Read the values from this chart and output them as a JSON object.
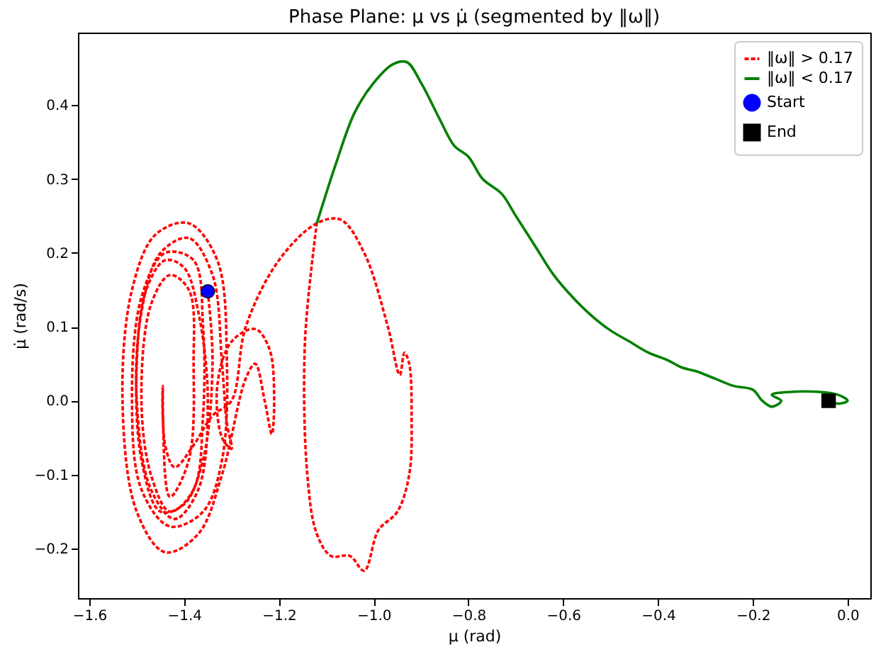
{
  "chart_data": {
    "type": "line",
    "title": "Phase Plane: μ vs μ̇ (segmented by ‖ω‖)",
    "xlabel": "μ (rad)",
    "ylabel": "μ̇ (rad/s)",
    "xlim": [
      -1.624,
      0.048
    ],
    "ylim": [
      -0.267,
      0.498
    ],
    "xticks": [
      -1.6,
      -1.4,
      -1.2,
      {
        "value": -1,
        "label": "−1.0"
      },
      -0.8,
      -0.6,
      -0.4,
      -0.2,
      {
        "value": 0,
        "label": "0.0"
      }
    ],
    "yticks": [
      -0.2,
      -0.1,
      {
        "value": 0,
        "label": "0.0"
      },
      0.1,
      0.2,
      0.3,
      0.4
    ],
    "legend": "top right",
    "series": [
      {
        "name": "‖ω‖ > 0.17",
        "line_style": "dashed",
        "color": "#ff0000",
        "x": [
          -1.35,
          -1.34,
          -1.36,
          -1.4,
          -1.45,
          -1.49,
          -1.5,
          -1.48,
          -1.44,
          -1.4,
          -1.37,
          -1.35,
          -1.37,
          -1.42,
          -1.47,
          -1.5,
          -1.49,
          -1.45,
          -1.39,
          -1.34,
          -1.32,
          -1.31,
          -1.3,
          -1.32,
          -1.33,
          -1.3,
          -1.25,
          -1.22,
          -1.21,
          -1.215,
          -1.23,
          -1.25,
          -1.27,
          -1.32,
          -1.37,
          -1.44,
          -1.5,
          -1.53,
          -1.51,
          -1.46,
          -1.39,
          -1.33,
          -1.31,
          -1.32,
          -1.36,
          -1.43,
          -1.49,
          -1.51,
          -1.49,
          -1.44,
          -1.38,
          -1.36,
          -1.36,
          -1.38,
          -1.43,
          -1.47,
          -1.49,
          -1.47,
          -1.43,
          -1.39,
          -1.38,
          -1.39,
          -1.43,
          -1.445,
          -1.445,
          -1.44,
          -1.42,
          -1.38,
          -1.34,
          -1.3,
          -1.27,
          -1.2,
          -1.12,
          -1.07,
          -1.02,
          -0.97,
          -0.945,
          -0.935,
          -0.925,
          -0.92,
          -0.925,
          -0.95,
          -0.99,
          -1.02,
          -1.05,
          -1.09,
          -1.12,
          -1.14,
          -1.145,
          -1.12
        ],
        "values": [
          0.148,
          0.05,
          -0.08,
          -0.14,
          -0.15,
          -0.08,
          0.05,
          0.15,
          0.19,
          0.18,
          0.12,
          0.0,
          -0.12,
          -0.16,
          -0.12,
          0.0,
          0.12,
          0.2,
          0.22,
          0.17,
          0.05,
          -0.03,
          -0.065,
          -0.05,
          0.02,
          0.08,
          0.097,
          0.07,
          0.0,
          -0.045,
          0.0,
          0.05,
          0.03,
          -0.1,
          -0.18,
          -0.205,
          -0.15,
          0.0,
          0.15,
          0.225,
          0.24,
          0.19,
          0.06,
          -0.08,
          -0.15,
          -0.17,
          -0.12,
          0.0,
          0.14,
          0.2,
          0.19,
          0.1,
          -0.02,
          -0.12,
          -0.15,
          -0.1,
          0.0,
          0.13,
          0.17,
          0.15,
          0.05,
          -0.08,
          -0.13,
          -0.02,
          0.02,
          -0.06,
          -0.09,
          -0.06,
          -0.02,
          0.0,
          0.1,
          0.19,
          0.24,
          0.245,
          0.2,
          0.1,
          0.035,
          0.065,
          0.05,
          -0.02,
          -0.1,
          -0.15,
          -0.175,
          -0.23,
          -0.21,
          -0.21,
          -0.18,
          -0.1,
          0.08,
          0.24
        ]
      },
      {
        "name": "‖ω‖ < 0.17",
        "line_style": "solid",
        "color": "#008000",
        "x": [
          -1.12,
          -1.08,
          -1.04,
          -1.0,
          -0.96,
          -0.93,
          -0.9,
          -0.86,
          -0.83,
          -0.8,
          -0.77,
          -0.73,
          -0.7,
          -0.66,
          -0.62,
          -0.58,
          -0.54,
          -0.5,
          -0.46,
          -0.42,
          -0.38,
          -0.35,
          -0.32,
          -0.28,
          -0.24,
          -0.2,
          -0.18,
          -0.16,
          -0.14,
          -0.16,
          -0.12,
          -0.06,
          -0.02,
          0.0,
          -0.02,
          -0.04
        ],
        "values": [
          0.24,
          0.32,
          0.39,
          0.43,
          0.455,
          0.458,
          0.43,
          0.38,
          0.345,
          0.33,
          0.3,
          0.28,
          0.25,
          0.21,
          0.17,
          0.14,
          0.115,
          0.095,
          0.08,
          0.065,
          0.055,
          0.045,
          0.04,
          0.03,
          0.02,
          0.015,
          0.0,
          -0.008,
          0.0,
          0.008,
          0.012,
          0.012,
          0.008,
          0.0,
          -0.004,
          0.0
        ]
      },
      {
        "name": "Start",
        "type": "scatter",
        "marker": "circle",
        "color": "#0000ff",
        "x": [
          -1.35
        ],
        "values": [
          0.148
        ]
      },
      {
        "name": "End",
        "type": "scatter",
        "marker": "square",
        "color": "#000000",
        "x": [
          -0.04
        ],
        "values": [
          0.0
        ]
      }
    ]
  }
}
